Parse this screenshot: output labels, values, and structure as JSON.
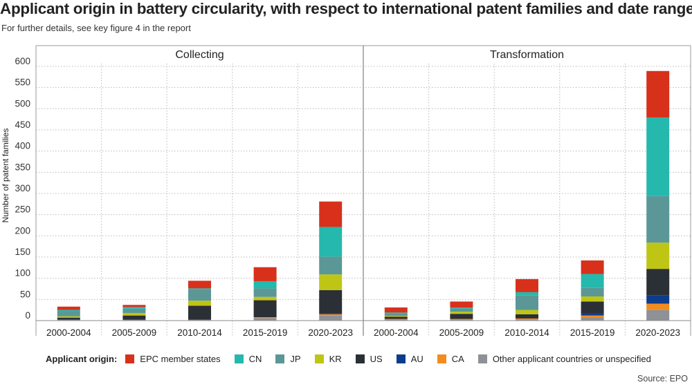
{
  "title": "Applicant origin in battery circularity, with respect to international patent families and date ranges",
  "subtitle": "For further details, see key figure 4 in the report",
  "source": "Source: EPO",
  "chart_data": {
    "type": "bar",
    "stacked": true,
    "ylabel": "Number of patent families",
    "ylim": [
      0,
      620
    ],
    "yticks": [
      0,
      50,
      100,
      150,
      200,
      250,
      300,
      350,
      400,
      450,
      500,
      550,
      600
    ],
    "categories": [
      "2000-2004",
      "2005-2009",
      "2010-2014",
      "2015-2019",
      "2020-2023"
    ],
    "series_legend_label": "Applicant origin:",
    "series": [
      {
        "key": "other",
        "name": "Other applicant countries or unspecified",
        "color": "#8e9196"
      },
      {
        "key": "ca",
        "name": "CA",
        "color": "#f28c1e"
      },
      {
        "key": "au",
        "name": "AU",
        "color": "#0d3c8c"
      },
      {
        "key": "us",
        "name": "US",
        "color": "#2b2f36"
      },
      {
        "key": "kr",
        "name": "KR",
        "color": "#bfc515"
      },
      {
        "key": "jp",
        "name": "JP",
        "color": "#5b9797"
      },
      {
        "key": "cn",
        "name": "CN",
        "color": "#25b8ad"
      },
      {
        "key": "epc",
        "name": "EPC member states",
        "color": "#d7311c"
      }
    ],
    "legend_order": [
      "epc",
      "cn",
      "jp",
      "kr",
      "us",
      "au",
      "ca",
      "other"
    ],
    "panels": [
      {
        "title": "Collecting",
        "stacks": {
          "other": [
            2,
            2,
            2,
            6,
            12
          ],
          "ca": [
            0,
            0,
            0,
            2,
            3
          ],
          "au": [
            0,
            0,
            0,
            0,
            2
          ],
          "us": [
            5,
            10,
            33,
            40,
            55
          ],
          "kr": [
            3,
            6,
            12,
            8,
            37
          ],
          "jp": [
            12,
            10,
            27,
            20,
            42
          ],
          "cn": [
            3,
            4,
            2,
            17,
            70
          ],
          "epc": [
            8,
            5,
            18,
            33,
            60
          ]
        }
      },
      {
        "title": "Transformation",
        "stacks": {
          "other": [
            3,
            3,
            3,
            8,
            25
          ],
          "ca": [
            1,
            1,
            2,
            4,
            15
          ],
          "au": [
            0,
            0,
            0,
            5,
            20
          ],
          "us": [
            5,
            12,
            10,
            28,
            62
          ],
          "kr": [
            2,
            5,
            10,
            12,
            62
          ],
          "jp": [
            6,
            8,
            34,
            20,
            110
          ],
          "cn": [
            2,
            2,
            8,
            33,
            185
          ],
          "epc": [
            12,
            14,
            31,
            32,
            110
          ]
        }
      }
    ]
  }
}
